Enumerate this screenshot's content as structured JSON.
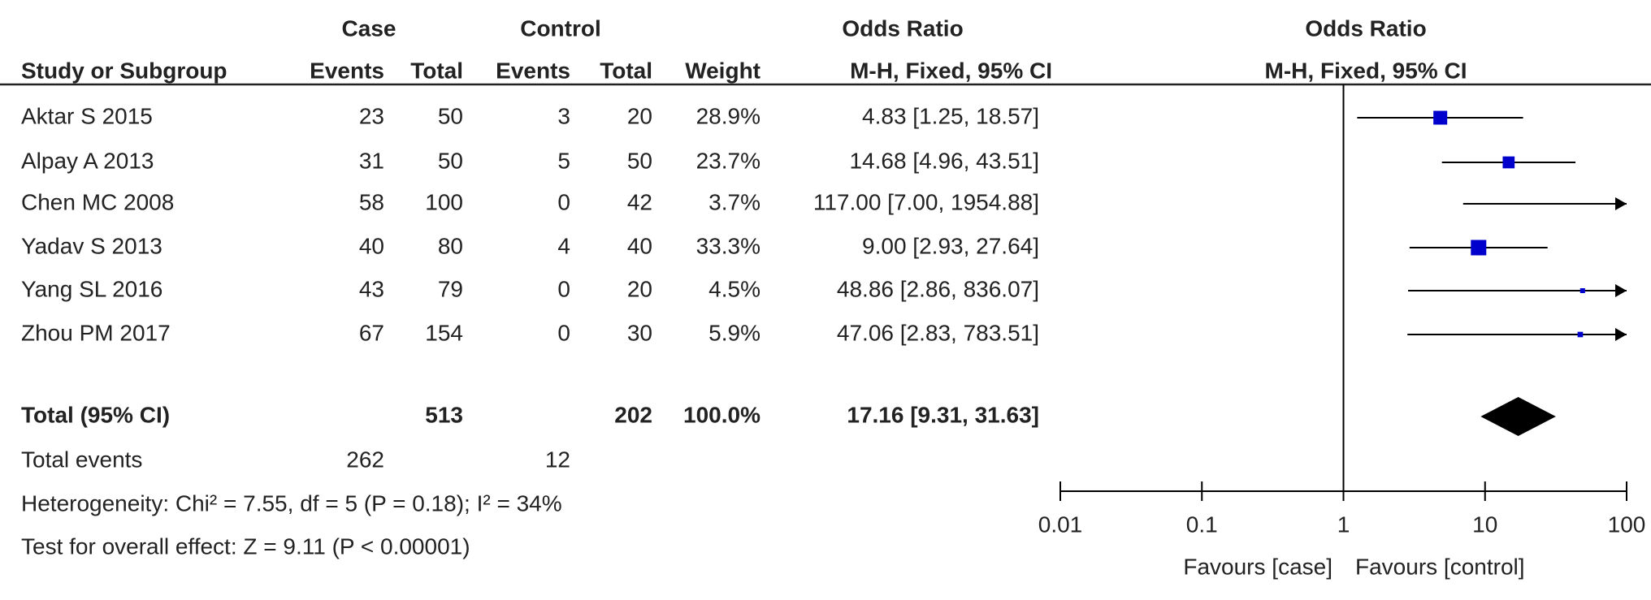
{
  "chart_data": {
    "type": "forest",
    "column_groups": [
      "Case",
      "Control",
      "Odds Ratio",
      "Odds Ratio"
    ],
    "columns": [
      "Study or Subgroup",
      "Events",
      "Total",
      "Events",
      "Total",
      "Weight",
      "M-H, Fixed, 95% CI",
      "M-H, Fixed, 95% CI"
    ],
    "studies": [
      {
        "name": "Aktar S 2015",
        "case_events": 23,
        "case_total": 50,
        "control_events": 3,
        "control_total": 20,
        "weight": 28.9,
        "weight_label": "28.9%",
        "or": 4.83,
        "ci": [
          1.25,
          18.57
        ],
        "or_label": "4.83 [1.25, 18.57]"
      },
      {
        "name": "Alpay A 2013",
        "case_events": 31,
        "case_total": 50,
        "control_events": 5,
        "control_total": 50,
        "weight": 23.7,
        "weight_label": "23.7%",
        "or": 14.68,
        "ci": [
          4.96,
          43.51
        ],
        "or_label": "14.68 [4.96, 43.51]"
      },
      {
        "name": "Chen MC 2008",
        "case_events": 58,
        "case_total": 100,
        "control_events": 0,
        "control_total": 42,
        "weight": 3.7,
        "weight_label": "3.7%",
        "or": 117.0,
        "ci": [
          7.0,
          1954.88
        ],
        "or_label": "117.00 [7.00, 1954.88]"
      },
      {
        "name": "Yadav S 2013",
        "case_events": 40,
        "case_total": 80,
        "control_events": 4,
        "control_total": 40,
        "weight": 33.3,
        "weight_label": "33.3%",
        "or": 9.0,
        "ci": [
          2.93,
          27.64
        ],
        "or_label": "9.00 [2.93, 27.64]"
      },
      {
        "name": "Yang SL 2016",
        "case_events": 43,
        "case_total": 79,
        "control_events": 0,
        "control_total": 20,
        "weight": 4.5,
        "weight_label": "4.5%",
        "or": 48.86,
        "ci": [
          2.86,
          836.07
        ],
        "or_label": "48.86 [2.86, 836.07]"
      },
      {
        "name": "Zhou PM 2017",
        "case_events": 67,
        "case_total": 154,
        "control_events": 0,
        "control_total": 30,
        "weight": 5.9,
        "weight_label": "5.9%",
        "or": 47.06,
        "ci": [
          2.83,
          783.51
        ],
        "or_label": "47.06 [2.83, 783.51]"
      }
    ],
    "total": {
      "name": "Total (95% CI)",
      "case_total": 513,
      "control_total": 202,
      "weight": 100.0,
      "weight_label": "100.0%",
      "or": 17.16,
      "ci": [
        9.31,
        31.63
      ],
      "or_label": "17.16 [9.31, 31.63]"
    },
    "total_events": {
      "name": "Total events",
      "case": 262,
      "control": 12
    },
    "heterogeneity": "Heterogeneity: Chi² = 7.55, df = 5 (P = 0.18); I² = 34%",
    "overall_effect": "Test for overall effect: Z = 9.11 (P < 0.00001)",
    "x_log_scale": true,
    "xlim": [
      0.01,
      100
    ],
    "xticks": [
      0.01,
      0.1,
      1,
      10,
      100
    ],
    "favours_left": "Favours [case]",
    "favours_right": "Favours [control]",
    "study_color": "#0000cc",
    "total_color": "#000000"
  }
}
